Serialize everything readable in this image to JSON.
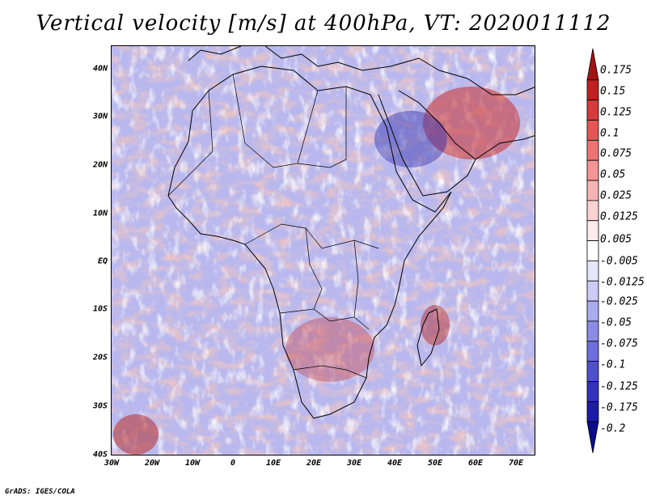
{
  "title": "Vertical velocity [m/s] at 400hPa, VT: 2020011112",
  "credit": "GrADS: IGES/COLA",
  "map": {
    "region": "Africa",
    "lon_range": [
      -30,
      75
    ],
    "lat_range": [
      -40,
      45
    ],
    "lat_ticks": [
      "40N",
      "30N",
      "20N",
      "10N",
      "EQ",
      "10S",
      "20S",
      "30S",
      "40S"
    ],
    "lon_ticks": [
      "30W",
      "20W",
      "10W",
      "0",
      "10E",
      "20E",
      "30E",
      "40E",
      "50E",
      "60E",
      "70E"
    ]
  },
  "colorbar": {
    "labels": [
      "0.175",
      "0.15",
      "0.125",
      "0.1",
      "0.075",
      "0.05",
      "0.025",
      "0.0125",
      "0.005",
      "-0.005",
      "-0.0125",
      "-0.025",
      "-0.05",
      "-0.075",
      "-0.1",
      "-0.125",
      "-0.175",
      "-0.2"
    ],
    "colors": [
      "#a01414",
      "#c02020",
      "#d63a3a",
      "#e45656",
      "#ee7474",
      "#f49494",
      "#f8b4b4",
      "#fbd2d2",
      "#fdeaea",
      "#ffffff",
      "#e6e6fb",
      "#cbcbf6",
      "#ababef",
      "#8c8ce6",
      "#6d6ddb",
      "#5050cc",
      "#3232bb",
      "#1c1ca8",
      "#0c0c8c"
    ]
  }
}
